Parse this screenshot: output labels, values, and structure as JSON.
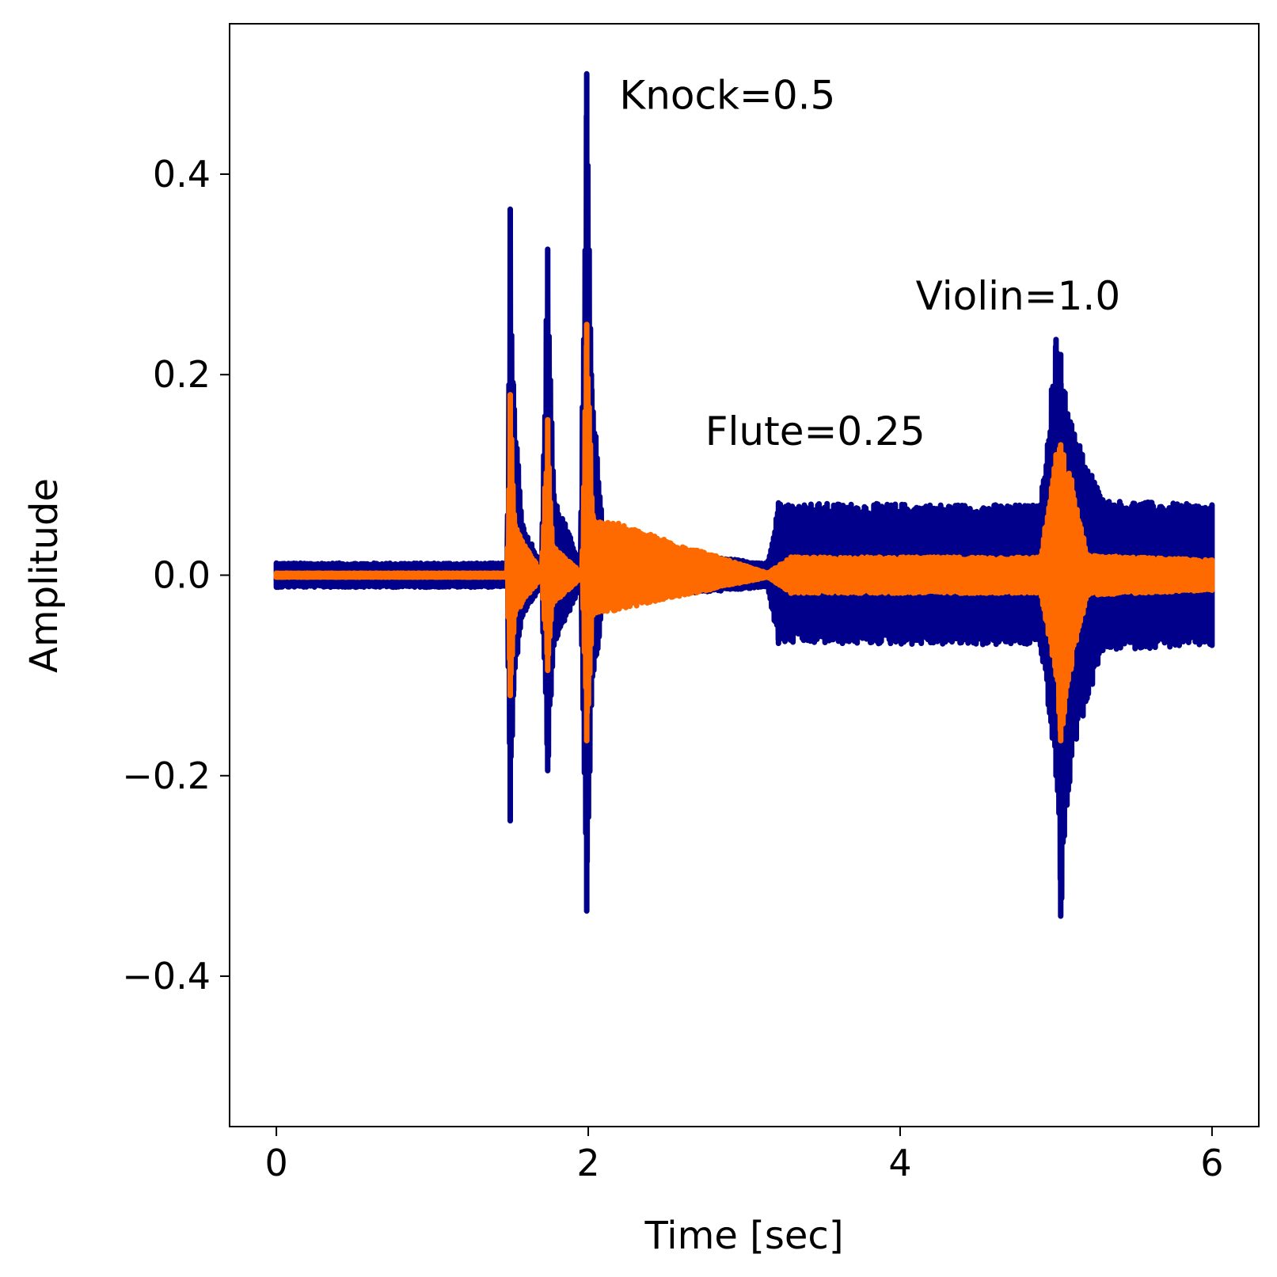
{
  "chart_data": {
    "type": "line",
    "title": "",
    "xlabel": "Time [sec]",
    "ylabel": "Amplitude",
    "xlim": [
      -0.3,
      6.3
    ],
    "ylim": [
      -0.55,
      0.55
    ],
    "xticks": [
      0,
      2,
      4,
      6
    ],
    "xtick_labels": [
      "0",
      "2",
      "4",
      "6"
    ],
    "yticks": [
      -0.4,
      -0.2,
      0.0,
      0.2,
      0.4
    ],
    "ytick_labels": [
      "−0.4",
      "−0.2",
      "0.0",
      "0.2",
      "0.4"
    ],
    "grid": false,
    "legend": "none",
    "series": [
      {
        "color": "#00008b",
        "envelope": [
          {
            "t": 0.0,
            "lo": -0.012,
            "hi": 0.012
          },
          {
            "t": 1.48,
            "lo": -0.012,
            "hi": 0.012
          },
          {
            "t": 1.5,
            "lo": -0.245,
            "hi": 0.365
          },
          {
            "t": 1.52,
            "lo": -0.12,
            "hi": 0.19
          },
          {
            "t": 1.58,
            "lo": -0.04,
            "hi": 0.05
          },
          {
            "t": 1.7,
            "lo": -0.012,
            "hi": 0.012
          },
          {
            "t": 1.74,
            "lo": -0.195,
            "hi": 0.325
          },
          {
            "t": 1.78,
            "lo": -0.07,
            "hi": 0.08
          },
          {
            "t": 1.95,
            "lo": -0.012,
            "hi": 0.012
          },
          {
            "t": 1.99,
            "lo": -0.335,
            "hi": 0.5
          },
          {
            "t": 2.02,
            "lo": -0.13,
            "hi": 0.2
          },
          {
            "t": 2.1,
            "lo": -0.025,
            "hi": 0.03
          },
          {
            "t": 3.15,
            "lo": -0.012,
            "hi": 0.012
          },
          {
            "t": 3.22,
            "lo": -0.068,
            "hi": 0.072
          },
          {
            "t": 4.9,
            "lo": -0.07,
            "hi": 0.07
          },
          {
            "t": 5.0,
            "lo": -0.2,
            "hi": 0.235
          },
          {
            "t": 5.03,
            "lo": -0.34,
            "hi": 0.22
          },
          {
            "t": 5.1,
            "lo": -0.18,
            "hi": 0.15
          },
          {
            "t": 5.3,
            "lo": -0.075,
            "hi": 0.075
          },
          {
            "t": 6.0,
            "lo": -0.07,
            "hi": 0.07
          }
        ]
      },
      {
        "color": "#ff6a00",
        "envelope": [
          {
            "t": 0.0,
            "lo": -0.002,
            "hi": 0.002
          },
          {
            "t": 1.48,
            "lo": -0.002,
            "hi": 0.002
          },
          {
            "t": 1.5,
            "lo": -0.12,
            "hi": 0.18
          },
          {
            "t": 1.53,
            "lo": -0.04,
            "hi": 0.05
          },
          {
            "t": 1.7,
            "lo": -0.002,
            "hi": 0.002
          },
          {
            "t": 1.74,
            "lo": -0.095,
            "hi": 0.155
          },
          {
            "t": 1.77,
            "lo": -0.03,
            "hi": 0.03
          },
          {
            "t": 1.96,
            "lo": -0.002,
            "hi": 0.002
          },
          {
            "t": 1.99,
            "lo": -0.165,
            "hi": 0.25
          },
          {
            "t": 2.03,
            "lo": -0.04,
            "hi": 0.06
          },
          {
            "t": 3.15,
            "lo": -0.002,
            "hi": 0.002
          },
          {
            "t": 3.3,
            "lo": -0.018,
            "hi": 0.018
          },
          {
            "t": 4.9,
            "lo": -0.018,
            "hi": 0.018
          },
          {
            "t": 5.0,
            "lo": -0.1,
            "hi": 0.12
          },
          {
            "t": 5.03,
            "lo": -0.165,
            "hi": 0.13
          },
          {
            "t": 5.1,
            "lo": -0.09,
            "hi": 0.095
          },
          {
            "t": 5.2,
            "lo": -0.02,
            "hi": 0.02
          },
          {
            "t": 6.0,
            "lo": -0.015,
            "hi": 0.015
          }
        ]
      }
    ],
    "annotations": [
      {
        "text": "Knock=0.5",
        "x": 2.2,
        "y": 0.465
      },
      {
        "text": "Flute=0.25",
        "x": 2.75,
        "y": 0.13
      },
      {
        "text": "Violin=1.0",
        "x": 4.1,
        "y": 0.265
      }
    ]
  }
}
